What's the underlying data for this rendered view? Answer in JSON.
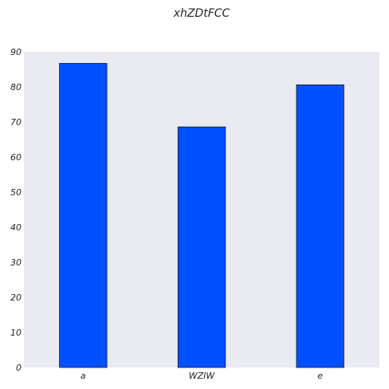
{
  "chart_data": {
    "type": "bar",
    "title": "xhZDtFCC",
    "xlabel": "",
    "ylabel": "",
    "categories": [
      "a",
      "WZIW",
      "e"
    ],
    "values": [
      86.7,
      68.6,
      80.6
    ],
    "ylim": [
      0,
      90
    ],
    "yticks": [
      0,
      10,
      20,
      30,
      40,
      50,
      60,
      70,
      80,
      90
    ],
    "grid": false,
    "legend": "none",
    "bar_color": "#0050ff",
    "plot_background": "#eaeaf2"
  }
}
